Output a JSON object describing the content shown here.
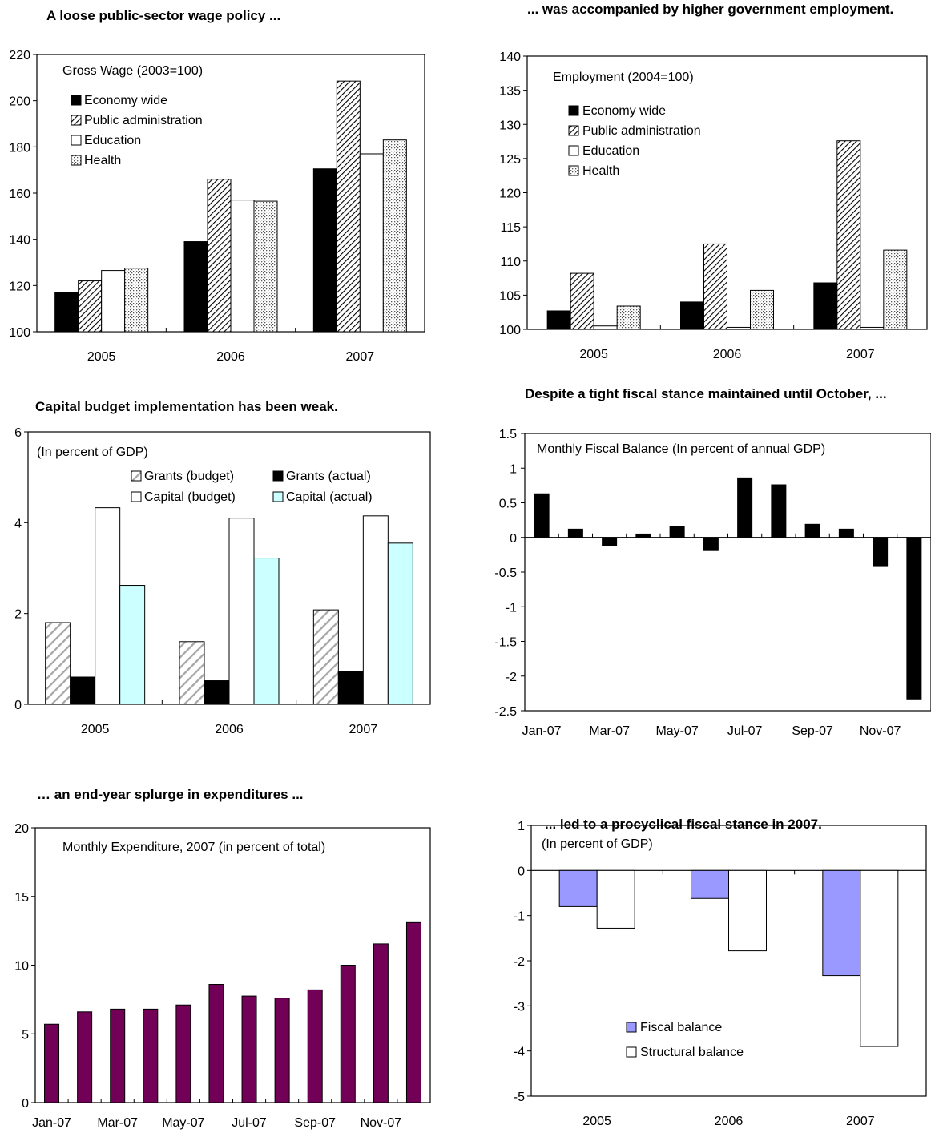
{
  "chart_data": [
    {
      "id": "wage",
      "type": "bar",
      "title": "A loose public-sector wage policy ...",
      "inner_label": "Gross Wage (2003=100)",
      "categories": [
        "2005",
        "2006",
        "2007"
      ],
      "ylim": [
        100,
        220
      ],
      "yticks": [
        100,
        120,
        140,
        160,
        180,
        200,
        220
      ],
      "legend": "top-left",
      "series": [
        {
          "name": "Economy wide",
          "pattern": "solid-black",
          "values": [
            117,
            139,
            170.5
          ]
        },
        {
          "name": "Public administration",
          "pattern": "hatch",
          "values": [
            122,
            166,
            208.5
          ]
        },
        {
          "name": "Education",
          "pattern": "white",
          "values": [
            126.5,
            157,
            177
          ]
        },
        {
          "name": "Health",
          "pattern": "dots",
          "values": [
            127.5,
            156.5,
            183
          ]
        }
      ]
    },
    {
      "id": "employment",
      "type": "bar",
      "title": "... was accompanied by higher government employment.",
      "inner_label": "Employment (2004=100)",
      "categories": [
        "2005",
        "2006",
        "2007"
      ],
      "ylim": [
        100,
        140
      ],
      "yticks": [
        100,
        105,
        110,
        115,
        120,
        125,
        130,
        135,
        140
      ],
      "legend": "top-left",
      "series": [
        {
          "name": "Economy wide",
          "pattern": "solid-black",
          "values": [
            102.7,
            104,
            106.8
          ]
        },
        {
          "name": "Public administration",
          "pattern": "hatch",
          "values": [
            108.2,
            112.5,
            127.6
          ]
        },
        {
          "name": "Education",
          "pattern": "white",
          "values": [
            100.5,
            100.3,
            100.3
          ]
        },
        {
          "name": "Health",
          "pattern": "dots",
          "values": [
            103.4,
            105.7,
            111.6
          ]
        }
      ]
    },
    {
      "id": "capital",
      "type": "bar",
      "title": "Capital budget implementation has been weak.",
      "inner_label": "(In percent of GDP)",
      "categories": [
        "2005",
        "2006",
        "2007"
      ],
      "ylim": [
        0,
        6
      ],
      "yticks": [
        0,
        2,
        4,
        6
      ],
      "legend": "top-right",
      "series": [
        {
          "name": "Grants (budget)",
          "pattern": "diag-gray",
          "values": [
            1.8,
            1.38,
            2.08
          ]
        },
        {
          "name": "Grants (actual)",
          "pattern": "solid-black",
          "values": [
            0.6,
            0.52,
            0.72
          ]
        },
        {
          "name": "Capital (budget)",
          "pattern": "white",
          "values": [
            4.33,
            4.1,
            4.15
          ]
        },
        {
          "name": "Capital (actual)",
          "pattern": "cyan",
          "values": [
            2.62,
            3.22,
            3.55
          ]
        }
      ]
    },
    {
      "id": "fiscal_monthly",
      "type": "bar",
      "title": "Despite a tight fiscal stance maintained until October, ...",
      "inner_label": "Monthly Fiscal  Balance (In percent of annual GDP)",
      "categories": [
        "Jan-07",
        "Feb-07",
        "Mar-07",
        "Apr-07",
        "May-07",
        "Jun-07",
        "Jul-07",
        "Aug-07",
        "Sep-07",
        "Oct-07",
        "Nov-07",
        "Dec-07"
      ],
      "tick_labels": [
        "Jan-07",
        "Mar-07",
        "May-07",
        "Jul-07",
        "Sep-07",
        "Nov-07"
      ],
      "ylim": [
        -2.5,
        1.5
      ],
      "yticks": [
        -2.5,
        -2,
        -1.5,
        -1,
        -0.5,
        0,
        0.5,
        1,
        1.5
      ],
      "series": [
        {
          "name": "",
          "pattern": "solid-black",
          "values": [
            0.63,
            0.12,
            -0.12,
            0.05,
            0.16,
            -0.19,
            0.86,
            0.76,
            0.19,
            0.12,
            -0.42,
            -2.33
          ]
        }
      ]
    },
    {
      "id": "expenditure",
      "type": "bar",
      "title": "… an end-year splurge in expenditures ...",
      "inner_label": "Monthly Expenditure, 2007 (in percent of total)",
      "categories": [
        "Jan-07",
        "Feb-07",
        "Mar-07",
        "Apr-07",
        "May-07",
        "Jun-07",
        "Jul-07",
        "Aug-07",
        "Sep-07",
        "Oct-07",
        "Nov-07",
        "Dec-07"
      ],
      "tick_labels": [
        "Jan-07",
        "Mar-07",
        "May-07",
        "Jul-07",
        "Sep-07",
        "Nov-07"
      ],
      "ylim": [
        0,
        20
      ],
      "yticks": [
        0,
        5,
        10,
        15,
        20
      ],
      "colors": {
        "bar": "#720057"
      },
      "series": [
        {
          "name": "",
          "pattern": "purple",
          "values": [
            5.7,
            6.6,
            6.8,
            6.8,
            7.1,
            8.6,
            7.75,
            7.6,
            8.2,
            10,
            11.55,
            13.1
          ]
        }
      ]
    },
    {
      "id": "procyclical",
      "type": "bar",
      "title": "... led to a procyclical fiscal stance in 2007.",
      "inner_label": "(In percent of GDP)",
      "categories": [
        "2005",
        "2006",
        "2007"
      ],
      "ylim": [
        -5,
        1
      ],
      "yticks": [
        -5,
        -4,
        -3,
        -2,
        -1,
        0,
        1
      ],
      "legend": "bottom-center",
      "colors": {
        "fiscal": "#9999ff"
      },
      "series": [
        {
          "name": "Fiscal balance",
          "pattern": "lavender",
          "values": [
            -0.8,
            -0.62,
            -2.33
          ]
        },
        {
          "name": "Structural balance",
          "pattern": "white",
          "values": [
            -1.28,
            -1.78,
            -3.9
          ]
        }
      ]
    }
  ]
}
